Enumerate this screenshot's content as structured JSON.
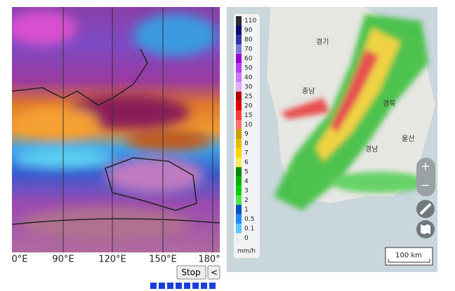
{
  "left_map": {
    "lon_labels": [
      "0°E",
      "90°E",
      "120°E",
      "150°E",
      "180°"
    ],
    "buttons": [
      "Stop",
      "<"
    ]
  },
  "right_map": {
    "legend": {
      "values": [
        110,
        90,
        80,
        70,
        60,
        50,
        40,
        30,
        25,
        20,
        15,
        10,
        9,
        8,
        7,
        6,
        5,
        4,
        3,
        2,
        1,
        0.5,
        0.1,
        0
      ],
      "unit": "mm/h"
    },
    "places": [
      "경기",
      "충남",
      "경북",
      "경남",
      "울산"
    ],
    "zoom": [
      "+",
      "−"
    ],
    "scale": "100 km"
  }
}
